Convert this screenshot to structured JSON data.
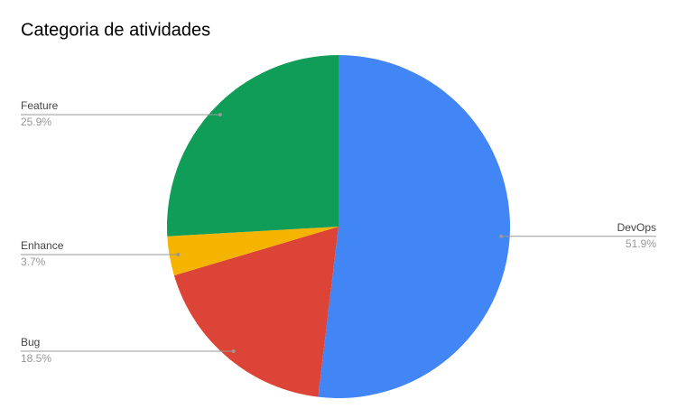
{
  "chart_data": {
    "type": "pie",
    "title": "Categoria de atividades",
    "categories": [
      "DevOps",
      "Bug",
      "Enhance",
      "Feature"
    ],
    "values": [
      51.9,
      18.5,
      3.7,
      25.9
    ],
    "value_labels": [
      "51.9%",
      "18.5%",
      "3.7%",
      "25.9%"
    ],
    "colors": [
      "#4285f4",
      "#db4437",
      "#f4b400",
      "#0f9d58"
    ]
  }
}
